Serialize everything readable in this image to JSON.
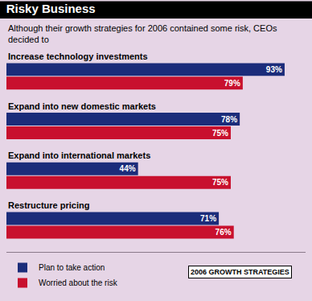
{
  "chart_data": {
    "type": "bar",
    "orientation": "horizontal",
    "title": "Risky Business",
    "subtitle": "Although their growth strategies for 2006 contained some risk, CEOs decided to",
    "categories": [
      "Increase technology investments",
      "Expand into new domestic markets",
      "Expand into international markets",
      "Restructure pricing"
    ],
    "series": [
      {
        "name": "Plan to take action",
        "color": "#1b2c7a",
        "values": [
          93,
          78,
          44,
          71
        ],
        "value_labels": [
          "93%",
          "78%",
          "44%",
          "71%"
        ]
      },
      {
        "name": "Worried about the risk",
        "color": "#c8102e",
        "values": [
          79,
          75,
          75,
          76
        ],
        "value_labels": [
          "79%",
          "75%",
          "75%",
          "76%"
        ]
      }
    ],
    "xlim": [
      0,
      100
    ],
    "xticks": [],
    "data_labels": true,
    "tick_labels": false,
    "grid": false,
    "legend": "bottom left",
    "annotations": [
      "2006 GROWTH STRATEGIES"
    ]
  }
}
